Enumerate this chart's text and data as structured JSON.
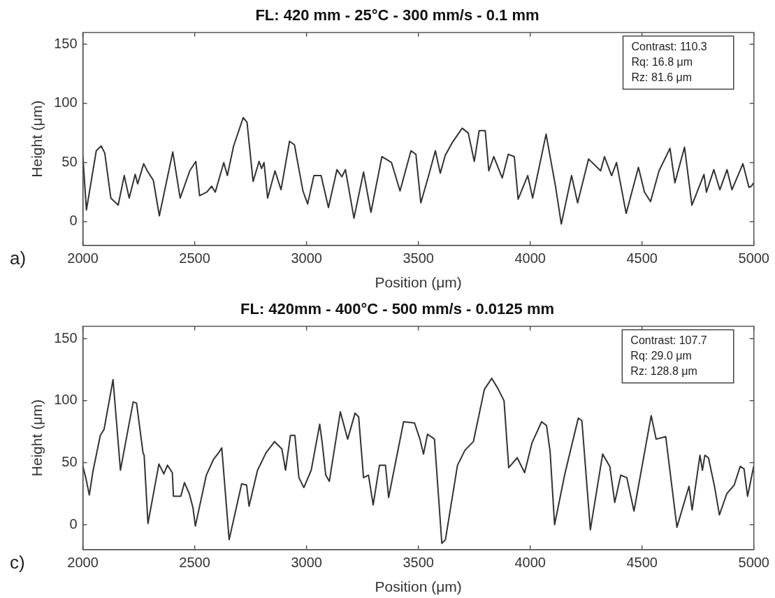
{
  "chart_data": [
    {
      "type": "line",
      "title": "FL: 420 mm - 25°C - 300 mm/s - 0.1 mm",
      "xlabel": "Position (μm)",
      "ylabel": "Height (μm)",
      "annotations": [
        "a)",
        "Contrast: 110.3",
        "Rq: 16.8 μm",
        "Rz: 81.6 μm"
      ],
      "xlim": [
        2000,
        5000
      ],
      "xticks": [
        2000,
        2500,
        3000,
        3500,
        4000,
        4500,
        5000
      ],
      "ylim": [
        -20,
        160
      ],
      "yticks": [
        0,
        50,
        100,
        150
      ],
      "grid": false,
      "legend": false,
      "marker": "none",
      "series": [
        {
          "color": "#333333",
          "x": [
            2000,
            2016,
            2060,
            2082,
            2098,
            2125,
            2158,
            2185,
            2207,
            2234,
            2245,
            2272,
            2288,
            2315,
            2342,
            2402,
            2435,
            2478,
            2505,
            2522,
            2554,
            2576,
            2592,
            2630,
            2646,
            2674,
            2717,
            2734,
            2761,
            2788,
            2799,
            2810,
            2826,
            2859,
            2886,
            2924,
            2946,
            2984,
            3005,
            3033,
            3065,
            3098,
            3136,
            3158,
            3174,
            3212,
            3255,
            3288,
            3337,
            3380,
            3418,
            3467,
            3489,
            3511,
            3543,
            3576,
            3598,
            3620,
            3652,
            3696,
            3723,
            3750,
            3772,
            3799,
            3815,
            3837,
            3875,
            3902,
            3929,
            3946,
            3989,
            4011,
            4071,
            4114,
            4139,
            4185,
            4212,
            4261,
            4315,
            4332,
            4364,
            4386,
            4429,
            4484,
            4511,
            4538,
            4576,
            4625,
            4647,
            4690,
            4723,
            4777,
            4788,
            4821,
            4848,
            4880,
            4902,
            4951,
            4978,
            4989,
            5000
          ],
          "values": [
            55,
            10,
            60,
            64,
            58,
            20,
            14,
            39,
            20,
            40,
            32,
            49,
            43,
            35,
            5,
            59,
            20,
            43,
            51,
            22,
            25,
            30,
            25,
            50,
            39,
            64,
            88,
            84,
            34,
            51,
            45,
            50,
            20,
            43,
            27,
            68,
            65,
            26,
            15,
            39,
            39,
            12,
            44,
            38,
            44,
            3,
            42,
            8,
            55,
            50,
            26,
            60,
            57,
            16,
            37,
            60,
            41,
            56,
            67,
            79,
            75,
            51,
            77,
            77,
            43,
            55,
            37,
            57,
            55,
            19,
            39,
            20,
            74,
            29,
            -2,
            39,
            16,
            53,
            43,
            55,
            39,
            50,
            7,
            46,
            25,
            17,
            43,
            62,
            33,
            63,
            14,
            40,
            25,
            44,
            27,
            44,
            27,
            49,
            29,
            30,
            33
          ]
        }
      ]
    },
    {
      "type": "line",
      "title": "FL: 420mm - 400°C - 500 mm/s - 0.0125 mm",
      "xlabel": "Position (μm)",
      "ylabel": "Height (μm)",
      "annotations": [
        "c)",
        "Contrast: 107.7",
        "Rq: 29.0 μm",
        "Rz: 128.8 μm"
      ],
      "xlim": [
        2000,
        5000
      ],
      "xticks": [
        2000,
        2500,
        3000,
        3500,
        4000,
        4500,
        5000
      ],
      "ylim": [
        -20,
        160
      ],
      "yticks": [
        0,
        50,
        100,
        150
      ],
      "grid": false,
      "legend": false,
      "marker": "none",
      "series": [
        {
          "color": "#333333",
          "x": [
            2000,
            2013,
            2029,
            2045,
            2078,
            2095,
            2135,
            2168,
            2225,
            2240,
            2269,
            2274,
            2291,
            2340,
            2362,
            2378,
            2400,
            2405,
            2438,
            2454,
            2476,
            2492,
            2503,
            2552,
            2585,
            2607,
            2621,
            2654,
            2710,
            2732,
            2743,
            2781,
            2819,
            2857,
            2890,
            2906,
            2928,
            2948,
            2966,
            2988,
            3021,
            3059,
            3070,
            3086,
            3102,
            3151,
            3184,
            3217,
            3233,
            3255,
            3277,
            3298,
            3326,
            3353,
            3367,
            3434,
            3483,
            3507,
            3523,
            3541,
            3572,
            3605,
            3621,
            3675,
            3708,
            3746,
            3795,
            3828,
            3855,
            3883,
            3904,
            3942,
            3975,
            4008,
            4051,
            4073,
            4089,
            4109,
            4155,
            4215,
            4231,
            4269,
            4324,
            4356,
            4378,
            4405,
            4432,
            4464,
            4541,
            4563,
            4606,
            4656,
            4710,
            4724,
            4759,
            4770,
            4781,
            4797,
            4824,
            4846,
            4879,
            4912,
            4939,
            4956,
            4972,
            4999
          ],
          "values": [
            47,
            38,
            24,
            43,
            72,
            77,
            117,
            44,
            99,
            98,
            58,
            56,
            1,
            49,
            41,
            48,
            42,
            23,
            23,
            34,
            25,
            14,
            -1,
            40,
            53,
            58,
            62,
            -12,
            33,
            32,
            15,
            44,
            58,
            67,
            61,
            44,
            72,
            72,
            38,
            30,
            44,
            81,
            66,
            40,
            35,
            91,
            69,
            90,
            87,
            38,
            40,
            16,
            48,
            48,
            22,
            83,
            82,
            69,
            57,
            73,
            69,
            -15,
            -12,
            48,
            60,
            67,
            109,
            118,
            110,
            100,
            46,
            54,
            42,
            66,
            83,
            80,
            59,
            0,
            41,
            86,
            84,
            -4,
            57,
            47,
            18,
            40,
            38,
            11,
            88,
            69,
            71,
            -2,
            31,
            12,
            56,
            44,
            56,
            54,
            31,
            8,
            25,
            32,
            47,
            45,
            23,
            47
          ]
        }
      ]
    }
  ]
}
